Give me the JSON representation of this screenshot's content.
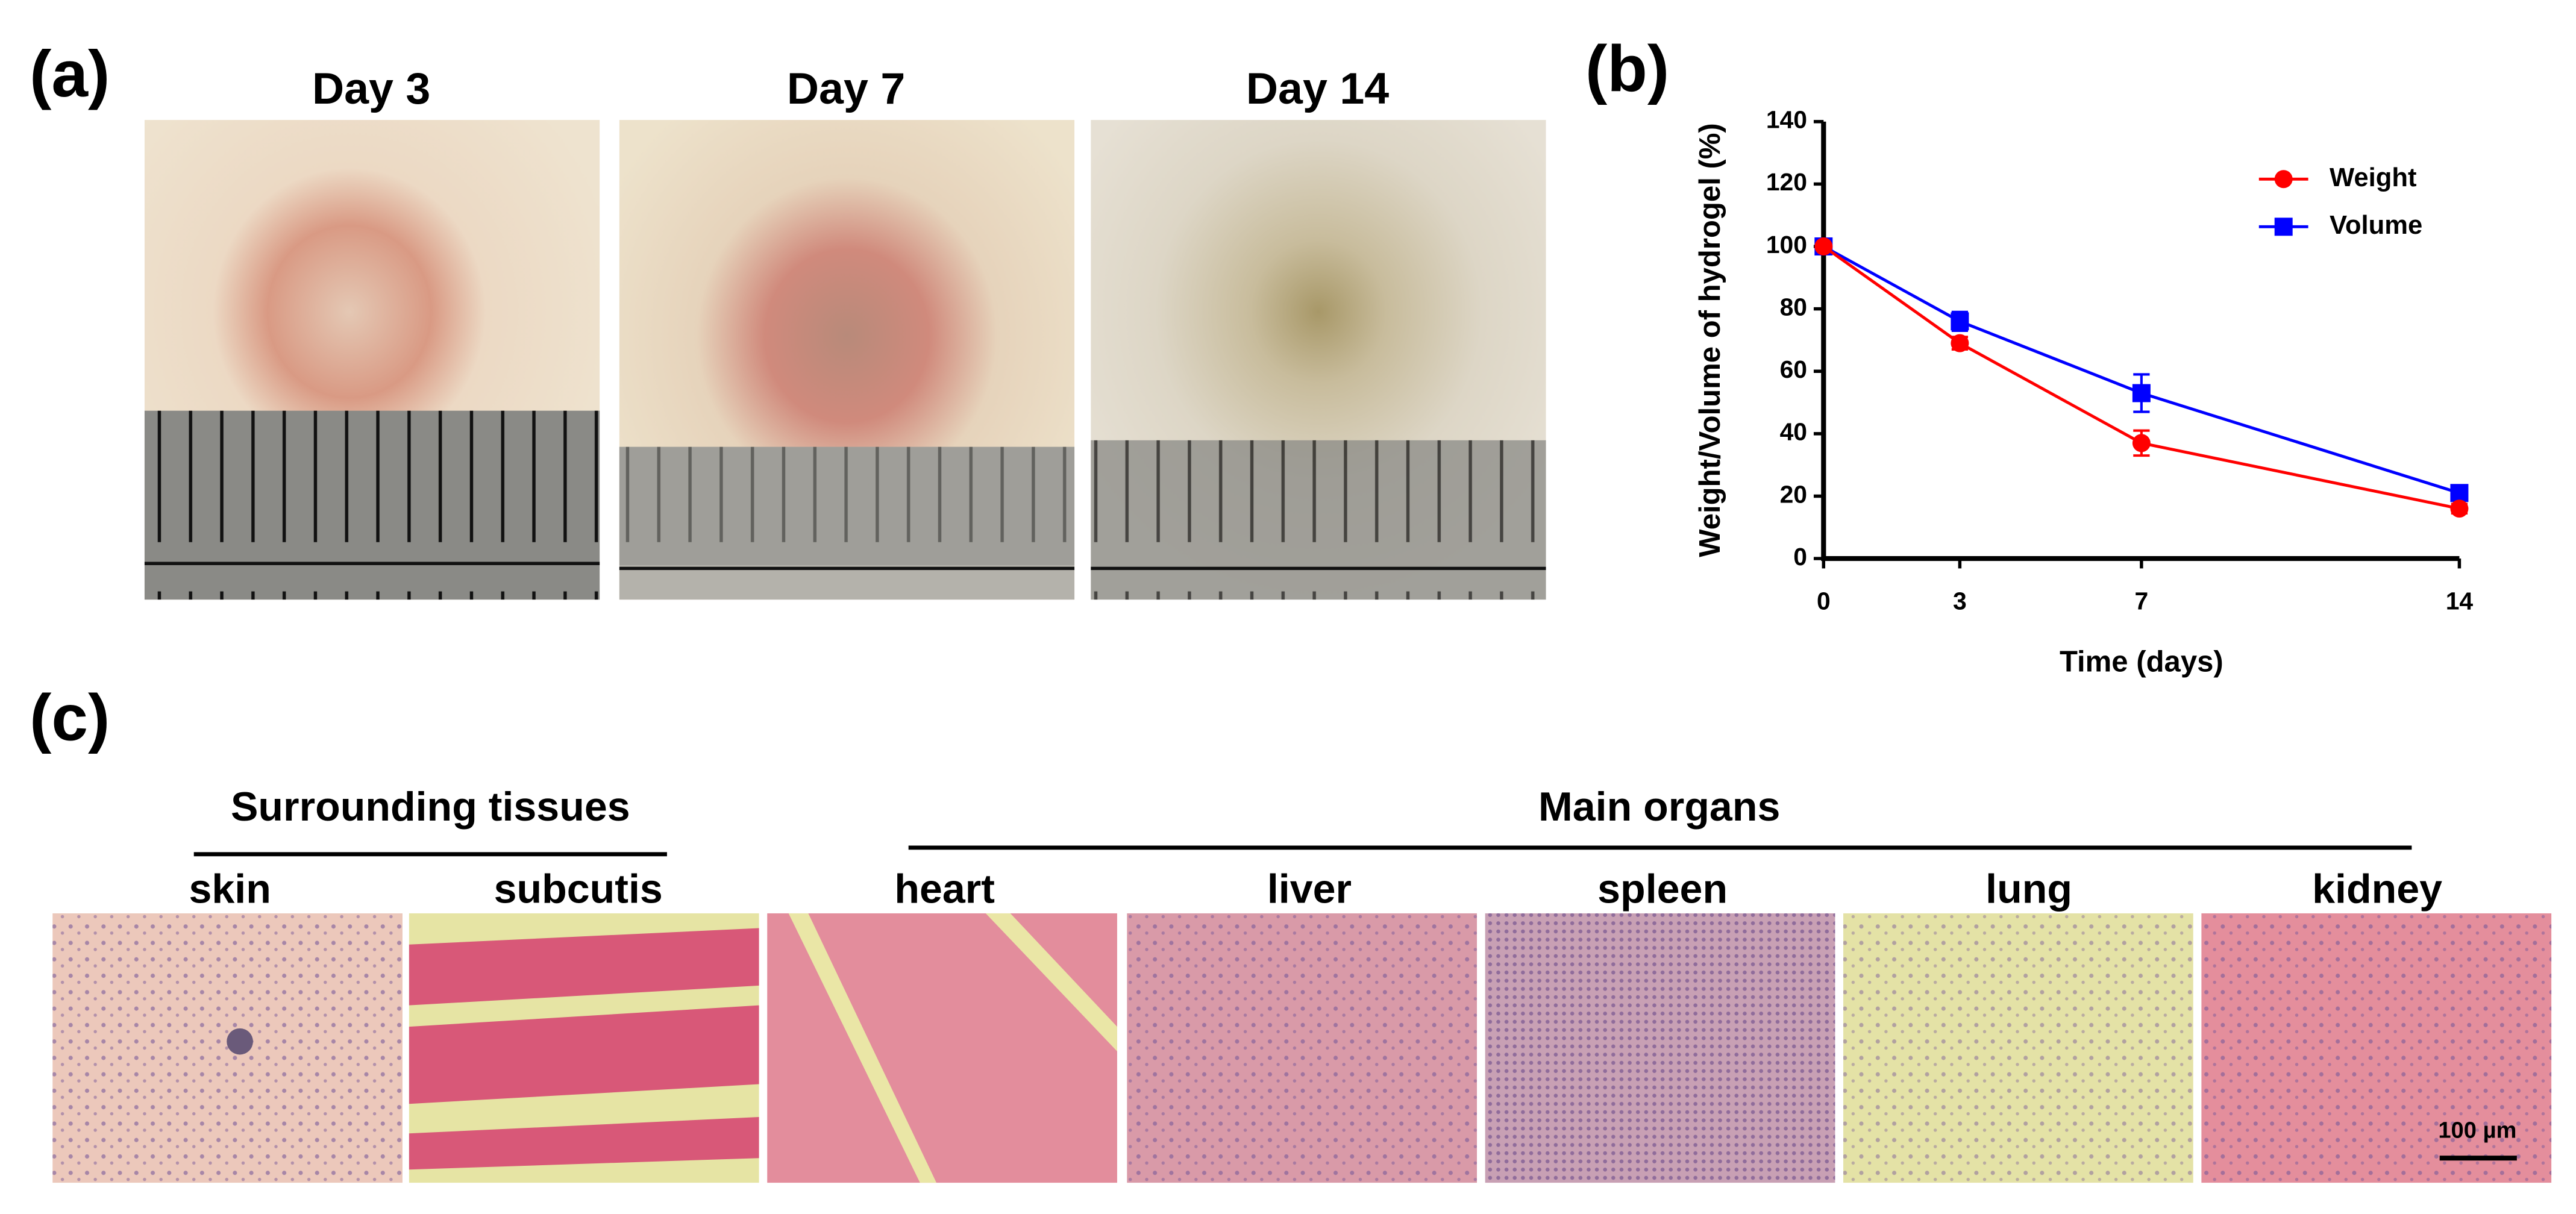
{
  "panels": {
    "a": {
      "label": "(a)",
      "days": [
        "Day 3",
        "Day 7",
        "Day 14"
      ]
    },
    "b": {
      "label": "(b)"
    },
    "c": {
      "label": "(c)",
      "groups": [
        "Surrounding tissues",
        "Main organs"
      ],
      "tissues": [
        "skin",
        "subcutis",
        "heart",
        "liver",
        "spleen",
        "lung",
        "kidney"
      ],
      "scale_bar": "100 µm"
    }
  },
  "chart_data": {
    "type": "line",
    "x": [
      0,
      3,
      7,
      14
    ],
    "xlabel": "Time (days)",
    "ylabel": "Weight/Volume of hydrogel (%)",
    "xlim": [
      0,
      14
    ],
    "xticks": [
      0,
      3,
      7,
      14
    ],
    "ylim": [
      0,
      140
    ],
    "yticks": [
      0,
      20,
      40,
      60,
      80,
      100,
      120,
      140
    ],
    "legend": "upper right",
    "series": [
      {
        "name": "Weight",
        "color": "#ff0000",
        "marker": "circle",
        "values": [
          100,
          69,
          37,
          16
        ],
        "errors": [
          0,
          2,
          4,
          1.5
        ]
      },
      {
        "name": "Volume",
        "color": "#0000ff",
        "marker": "square",
        "values": [
          100,
          76,
          53,
          21
        ],
        "errors": [
          0,
          3,
          6,
          1.5
        ]
      }
    ]
  }
}
